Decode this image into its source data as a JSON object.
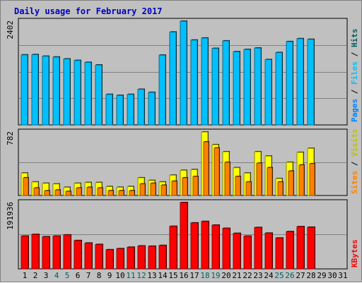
{
  "title": "Daily usage for February 2017",
  "colors": {
    "pages": "#0080ff",
    "files": "#00c0ff",
    "hits": "#006060",
    "visits": "#ffff00",
    "sites": "#ff8000",
    "kbytes": "#ff0000",
    "weekend": "#006060",
    "weekday": "#000000"
  },
  "chart_data": [
    {
      "type": "bar",
      "title": "Daily usage for February 2017",
      "categories": [
        "1",
        "2",
        "3",
        "4",
        "5",
        "6",
        "7",
        "8",
        "9",
        "10",
        "11",
        "12",
        "13",
        "14",
        "15",
        "16",
        "17",
        "18",
        "19",
        "20",
        "21",
        "22",
        "23",
        "24",
        "25",
        "26",
        "27",
        "28",
        "29",
        "30",
        "31"
      ],
      "weekend_days": [
        "4",
        "5",
        "11",
        "12",
        "18",
        "19",
        "25",
        "26"
      ],
      "ymax_label": "2402",
      "ylim": [
        0,
        2402
      ],
      "legend": [
        "Pages",
        "Files",
        "Hits"
      ],
      "series": [
        {
          "name": "Pages",
          "values": [
            1622,
            1628,
            1591,
            1572,
            1527,
            1493,
            1447,
            1388,
            707,
            684,
            707,
            824,
            754,
            1616,
            2150,
            2402,
            1965,
            2012,
            1771,
            1946,
            1695,
            1747,
            1780,
            1512,
            1675,
            1930,
            1997,
            1982,
            0,
            0,
            0
          ]
        },
        {
          "name": "Files",
          "values": [
            1622,
            1628,
            1591,
            1572,
            1527,
            1493,
            1447,
            1388,
            707,
            684,
            707,
            824,
            754,
            1616,
            2150,
            2402,
            1965,
            2012,
            1771,
            1946,
            1695,
            1747,
            1780,
            1512,
            1675,
            1930,
            1997,
            1982,
            0,
            0,
            0
          ]
        },
        {
          "name": "Hits",
          "values": [
            1622,
            1628,
            1591,
            1572,
            1527,
            1493,
            1447,
            1388,
            707,
            684,
            707,
            824,
            754,
            1616,
            2150,
            2402,
            1965,
            2012,
            1771,
            1946,
            1695,
            1747,
            1780,
            1512,
            1675,
            1930,
            1997,
            1982,
            0,
            0,
            0
          ]
        }
      ]
    },
    {
      "type": "bar",
      "ymax_label": "782",
      "ylim": [
        0,
        782
      ],
      "legend": [
        "Sites",
        "Visits"
      ],
      "series": [
        {
          "name": "Visits",
          "values": [
            276,
            167,
            150,
            142,
            100,
            150,
            159,
            159,
            109,
            101,
            109,
            218,
            185,
            167,
            250,
            309,
            318,
            782,
            626,
            539,
            342,
            276,
            539,
            485,
            209,
            409,
            531,
            580,
            0,
            0,
            0
          ]
        },
        {
          "name": "Sites",
          "values": [
            218,
            92,
            58,
            67,
            50,
            92,
            100,
            92,
            59,
            59,
            59,
            142,
            150,
            126,
            176,
            218,
            234,
            660,
            585,
            409,
            234,
            167,
            398,
            342,
            167,
            300,
            376,
            392,
            0,
            0,
            0
          ]
        }
      ]
    },
    {
      "type": "bar",
      "ymax_label": "191936",
      "ylim": [
        0,
        191936
      ],
      "legend": [
        "KBytes"
      ],
      "series": [
        {
          "name": "KBytes",
          "values": [
            94800,
            99700,
            92900,
            94800,
            98300,
            82000,
            74700,
            70600,
            55500,
            58500,
            62700,
            66300,
            65600,
            67800,
            123200,
            191936,
            133000,
            137300,
            126600,
            117300,
            102800,
            94600,
            119600,
            103400,
            89300,
            107900,
            122200,
            120600,
            0,
            0,
            0
          ]
        }
      ]
    }
  ]
}
